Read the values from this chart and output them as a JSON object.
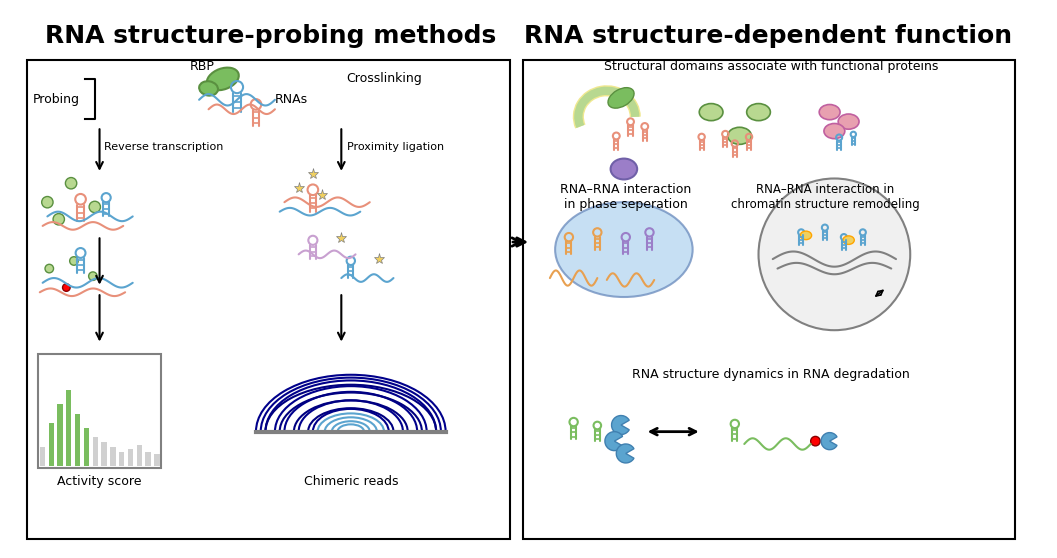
{
  "title_left": "RNA structure-probing methods",
  "title_right": "RNA structure-dependent function",
  "title_fontsize": 18,
  "title_fontweight": "bold",
  "bg_color": "#ffffff",
  "panel_border_color": "#333333",
  "text_labels": {
    "probing": "Probing",
    "crosslinking": "Crosslinking",
    "rbp": "RBP",
    "rnas": "RNAs",
    "reverse_transcription": "Reverse transcription",
    "proximity_ligation": "Proximity ligation",
    "activity_score": "Activity score",
    "chimeric_reads": "Chimeric reads",
    "structural_domains": "Structural domains associate with functional proteins",
    "rna_rna_phase": "RNA–RNA interaction\nin phase seperation",
    "rna_rna_chromatin": "RNA–RNA interaction in\nchromatin structure remodeling",
    "rna_degradation": "RNA structure dynamics in RNA degradation"
  },
  "colors": {
    "salmon": "#E8907A",
    "blue": "#5BA4CF",
    "green": "#7ABD5F",
    "dark_green": "#5A9040",
    "yellow": "#F0D060",
    "purple": "#9B7EC8",
    "light_purple": "#C8A0D0",
    "orange": "#E8A050",
    "light_blue": "#A0C8E8",
    "light_green": "#B8D890",
    "pink": "#E8A0B0",
    "gray": "#808080",
    "dark_gray": "#404040",
    "light_gray": "#D0D0D0",
    "pale_yellow": "#F0E890",
    "pale_blue": "#C0D8F0",
    "olive": "#90A840"
  }
}
